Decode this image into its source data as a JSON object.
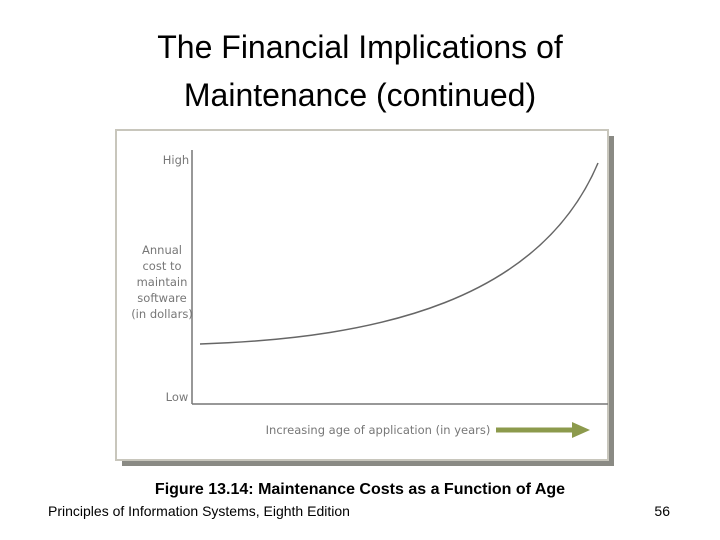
{
  "title": [
    "The Financial Implications of",
    "Maintenance (continued)"
  ],
  "figure": {
    "y_high": "High",
    "y_label": [
      "Annual",
      "cost to",
      "maintain",
      "software",
      "(in dollars)"
    ],
    "y_low": "Low",
    "x_label": "Increasing age of application (in years)"
  },
  "caption": "Figure 13.14: Maintenance Costs as a Function of Age",
  "footer": {
    "source": "Principles of Information Systems, Eighth Edition",
    "page": "56"
  }
}
